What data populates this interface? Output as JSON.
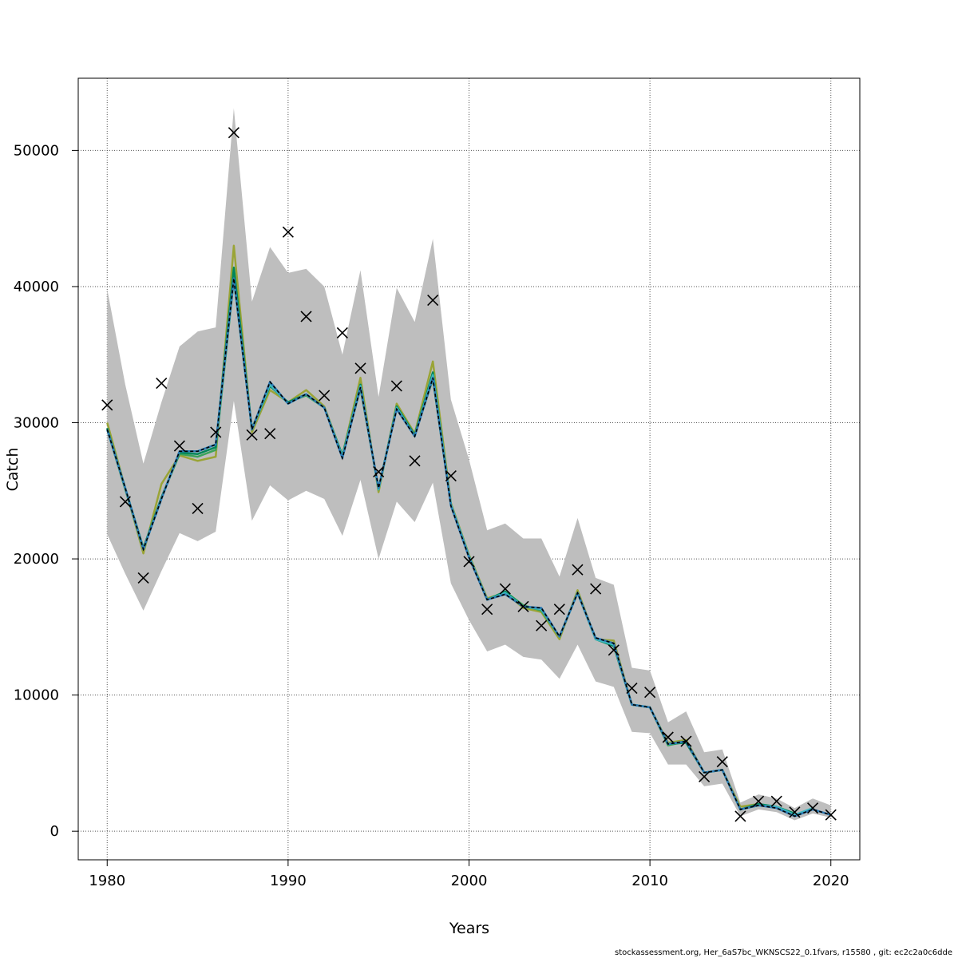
{
  "chart_data": {
    "type": "line",
    "xlabel": "Years",
    "ylabel": "Catch",
    "xlim": [
      1978.4,
      2021.6
    ],
    "ylim": [
      -2100,
      55300
    ],
    "x_ticks": [
      1980,
      1990,
      2000,
      2010,
      2020
    ],
    "y_ticks": [
      0,
      10000,
      20000,
      30000,
      40000,
      50000
    ],
    "grid": true,
    "footer": "stockassessment.org, Her_6aS7bc_WKNSCS22_0.1fvars, r15580 , git: ec2c2a0c6dde",
    "colors": {
      "band": "#bebebe",
      "base": "#000000",
      "retro": [
        "#2c7bb6",
        "#3fb8c0",
        "#00875a",
        "#3aa35a",
        "#9aa436"
      ],
      "observed": "#000000"
    },
    "observed": {
      "x": [
        1980,
        1981,
        1982,
        1983,
        1984,
        1985,
        1986,
        1987,
        1988,
        1989,
        1990,
        1991,
        1992,
        1993,
        1994,
        1995,
        1996,
        1997,
        1998,
        1999,
        2000,
        2001,
        2002,
        2003,
        2004,
        2005,
        2006,
        2007,
        2008,
        2009,
        2010,
        2011,
        2012,
        2013,
        2014,
        2015,
        2016,
        2017,
        2018,
        2019,
        2020
      ],
      "y": [
        31300,
        24200,
        18600,
        32900,
        28300,
        23700,
        29300,
        51300,
        29100,
        29200,
        44000,
        37800,
        32000,
        36600,
        34000,
        26400,
        32700,
        27200,
        39000,
        26100,
        19800,
        16300,
        17800,
        16500,
        15100,
        16300,
        19200,
        17800,
        13300,
        10500,
        10200,
        6900,
        6600,
        4000,
        5100,
        1100,
        2200,
        2200,
        1400,
        1700,
        1200
      ]
    },
    "band_upper": {
      "x": [
        1980,
        1981,
        1982,
        1983,
        1984,
        1985,
        1986,
        1987,
        1988,
        1989,
        1990,
        1991,
        1992,
        1993,
        1994,
        1995,
        1996,
        1997,
        1998,
        1999,
        2000,
        2001,
        2002,
        2003,
        2004,
        2005,
        2006,
        2007,
        2008,
        2009,
        2010,
        2011,
        2012,
        2013,
        2014,
        2015,
        2016,
        2017,
        2018,
        2019,
        2020
      ],
      "y": [
        39800,
        32800,
        27000,
        31500,
        35600,
        36700,
        37000,
        53100,
        38900,
        42900,
        41000,
        41300,
        40000,
        35000,
        41200,
        31900,
        39900,
        37400,
        43500,
        31700,
        27300,
        22100,
        22600,
        21500,
        21500,
        18700,
        23000,
        18600,
        18100,
        12000,
        11800,
        8000,
        8800,
        5800,
        6000,
        2100,
        2700,
        2400,
        1700,
        2400,
        1900
      ]
    },
    "band_lower": {
      "x": [
        1980,
        1981,
        1982,
        1983,
        1984,
        1985,
        1986,
        1987,
        1988,
        1989,
        1990,
        1991,
        1992,
        1993,
        1994,
        1995,
        1996,
        1997,
        1998,
        1999,
        2000,
        2001,
        2002,
        2003,
        2004,
        2005,
        2006,
        2007,
        2008,
        2009,
        2010,
        2011,
        2012,
        2013,
        2014,
        2015,
        2016,
        2017,
        2018,
        2019,
        2020
      ],
      "y": [
        21800,
        18900,
        16200,
        19100,
        21900,
        21300,
        22000,
        31600,
        22800,
        25400,
        24300,
        25000,
        24400,
        21700,
        25800,
        20000,
        24200,
        22700,
        25600,
        18200,
        15500,
        13200,
        13700,
        12800,
        12600,
        11200,
        13700,
        11000,
        10600,
        7300,
        7200,
        4900,
        4900,
        3300,
        3500,
        1100,
        1600,
        1400,
        800,
        1300,
        1000
      ]
    },
    "series": [
      {
        "x": [
          1980,
          1981,
          1982,
          1983,
          1984,
          1985,
          1986,
          1987,
          1988,
          1989,
          1990,
          1991,
          1992,
          1993,
          1994,
          1995,
          1996,
          1997,
          1998,
          1999,
          2000,
          2001,
          2002,
          2003,
          2004,
          2005,
          2006,
          2007,
          2008,
          2009,
          2010,
          2011,
          2012,
          2013,
          2014,
          2015,
          2016,
          2017,
          2018,
          2019,
          2020
        ],
        "y": [
          29500,
          25200,
          20700,
          24400,
          27900,
          27900,
          28400,
          40600,
          29500,
          33000,
          31400,
          32100,
          31100,
          27400,
          32600,
          25200,
          31000,
          29000,
          33300,
          23900,
          20100,
          17000,
          17400,
          16500,
          16400,
          14300,
          17500,
          14200,
          13800,
          9300,
          9100,
          6400,
          6600,
          4300,
          4500,
          1600,
          1900,
          1700,
          1100,
          1600,
          1200
        ]
      },
      {
        "x": [
          1980,
          1981,
          1982,
          1983,
          1984,
          1985,
          1986,
          1987,
          1988,
          1989,
          1990,
          1991,
          1992,
          1993,
          1994,
          1995,
          1996,
          1997,
          1998,
          1999,
          2000,
          2001,
          2002,
          2003,
          2004,
          2005,
          2006,
          2007,
          2008,
          2009,
          2010,
          2011,
          2012,
          2013,
          2014,
          2015,
          2016,
          2017,
          2018,
          2019
        ],
        "y": [
          29500,
          25200,
          20700,
          24400,
          27900,
          27900,
          28400,
          40600,
          29500,
          32800,
          31400,
          32100,
          31100,
          27500,
          32700,
          25100,
          31100,
          29000,
          33500,
          24000,
          20200,
          17000,
          17500,
          16500,
          16300,
          14300,
          17500,
          14100,
          13700,
          9300,
          9100,
          6400,
          6600,
          4300,
          4500,
          1600,
          1900,
          1800,
          1200,
          1700
        ]
      },
      {
        "x": [
          1980,
          1981,
          1982,
          1983,
          1984,
          1985,
          1986,
          1987,
          1988,
          1989,
          1990,
          1991,
          1992,
          1993,
          1994,
          1995,
          1996,
          1997,
          1998,
          1999,
          2000,
          2001,
          2002,
          2003,
          2004,
          2005,
          2006,
          2007,
          2008,
          2009,
          2010,
          2011,
          2012,
          2013,
          2014,
          2015,
          2016,
          2017,
          2018
        ],
        "y": [
          29600,
          25200,
          20800,
          24500,
          27800,
          27700,
          28200,
          41400,
          29500,
          32700,
          31500,
          32100,
          31100,
          27600,
          32800,
          25100,
          31200,
          29100,
          33700,
          24000,
          20200,
          17000,
          17600,
          16500,
          16300,
          14300,
          17500,
          14100,
          13600,
          9300,
          9100,
          6400,
          6500,
          4300,
          4500,
          1600,
          2000,
          1800,
          1300
        ]
      },
      {
        "x": [
          1980,
          1981,
          1982,
          1983,
          1984,
          1985,
          1986,
          1987,
          1988,
          1989,
          1990,
          1991,
          1992,
          1993,
          1994,
          1995,
          1996,
          1997,
          1998,
          1999,
          2000,
          2001,
          2002,
          2003,
          2004,
          2005,
          2006,
          2007,
          2008,
          2009,
          2010,
          2011,
          2012,
          2013,
          2014,
          2015,
          2016,
          2017
        ],
        "y": [
          29500,
          25100,
          20700,
          24500,
          27700,
          27500,
          28000,
          40500,
          29600,
          32700,
          31500,
          32000,
          31100,
          27600,
          32500,
          25200,
          31100,
          29100,
          33200,
          24000,
          20200,
          17000,
          17600,
          16600,
          16200,
          14300,
          17500,
          14200,
          13700,
          9300,
          9100,
          6300,
          6600,
          4300,
          4500,
          1600,
          1900,
          1800
        ]
      },
      {
        "x": [
          1980,
          1981,
          1982,
          1983,
          1984,
          1985,
          1986,
          1987,
          1988,
          1989,
          1990,
          1991,
          1992,
          1993,
          1994,
          1995,
          1996,
          1997,
          1998,
          1999,
          2000,
          2001,
          2002,
          2003,
          2004,
          2005,
          2006,
          2007,
          2008,
          2009,
          2010,
          2011,
          2012,
          2013,
          2014,
          2015,
          2016
        ],
        "y": [
          30000,
          25200,
          20400,
          25500,
          27600,
          27200,
          27500,
          43000,
          29300,
          32400,
          31500,
          32400,
          31200,
          27600,
          33300,
          24900,
          31400,
          29200,
          34500,
          24100,
          20300,
          17100,
          17500,
          16400,
          16100,
          14100,
          17700,
          14100,
          14000,
          9300,
          9100,
          6500,
          6700,
          4300,
          4500,
          1800,
          2000
        ]
      }
    ]
  }
}
